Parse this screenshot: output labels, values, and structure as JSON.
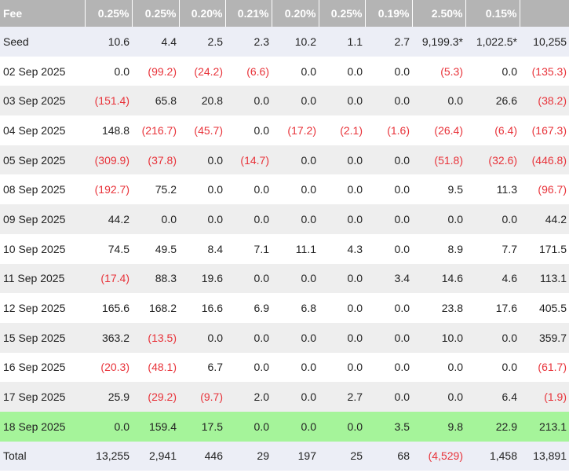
{
  "table": {
    "headers": [
      "Fee",
      "0.25%",
      "0.25%",
      "0.20%",
      "0.21%",
      "0.20%",
      "0.25%",
      "0.19%",
      "2.50%",
      "0.15%",
      ""
    ],
    "rows": [
      {
        "label": "Seed",
        "style": "seed",
        "cells": [
          "10.6",
          "4.4",
          "2.5",
          "2.3",
          "10.2",
          "1.1",
          "2.7",
          "9,199.3*",
          "1,022.5*",
          "10,255"
        ]
      },
      {
        "label": "02 Sep 2025",
        "style": "",
        "cells": [
          "0.0",
          "(99.2)",
          "(24.2)",
          "(6.6)",
          "0.0",
          "0.0",
          "0.0",
          "(5.3)",
          "0.0",
          "(135.3)"
        ]
      },
      {
        "label": "03 Sep 2025",
        "style": "",
        "cells": [
          "(151.4)",
          "65.8",
          "20.8",
          "0.0",
          "0.0",
          "0.0",
          "0.0",
          "0.0",
          "26.6",
          "(38.2)"
        ]
      },
      {
        "label": "04 Sep 2025",
        "style": "",
        "cells": [
          "148.8",
          "(216.7)",
          "(45.7)",
          "0.0",
          "(17.2)",
          "(2.1)",
          "(1.6)",
          "(26.4)",
          "(6.4)",
          "(167.3)"
        ]
      },
      {
        "label": "05 Sep 2025",
        "style": "",
        "cells": [
          "(309.9)",
          "(37.8)",
          "0.0",
          "(14.7)",
          "0.0",
          "0.0",
          "0.0",
          "(51.8)",
          "(32.6)",
          "(446.8)"
        ]
      },
      {
        "label": "08 Sep 2025",
        "style": "",
        "cells": [
          "(192.7)",
          "75.2",
          "0.0",
          "0.0",
          "0.0",
          "0.0",
          "0.0",
          "9.5",
          "11.3",
          "(96.7)"
        ]
      },
      {
        "label": "09 Sep 2025",
        "style": "",
        "cells": [
          "44.2",
          "0.0",
          "0.0",
          "0.0",
          "0.0",
          "0.0",
          "0.0",
          "0.0",
          "0.0",
          "44.2"
        ]
      },
      {
        "label": "10 Sep 2025",
        "style": "",
        "cells": [
          "74.5",
          "49.5",
          "8.4",
          "7.1",
          "11.1",
          "4.3",
          "0.0",
          "8.9",
          "7.7",
          "171.5"
        ]
      },
      {
        "label": "11 Sep 2025",
        "style": "",
        "cells": [
          "(17.4)",
          "88.3",
          "19.6",
          "0.0",
          "0.0",
          "0.0",
          "3.4",
          "14.6",
          "4.6",
          "113.1"
        ]
      },
      {
        "label": "12 Sep 2025",
        "style": "",
        "cells": [
          "165.6",
          "168.2",
          "16.6",
          "6.9",
          "6.8",
          "0.0",
          "0.0",
          "23.8",
          "17.6",
          "405.5"
        ]
      },
      {
        "label": "15 Sep 2025",
        "style": "",
        "cells": [
          "363.2",
          "(13.5)",
          "0.0",
          "0.0",
          "0.0",
          "0.0",
          "0.0",
          "10.0",
          "0.0",
          "359.7"
        ]
      },
      {
        "label": "16 Sep 2025",
        "style": "",
        "cells": [
          "(20.3)",
          "(48.1)",
          "6.7",
          "0.0",
          "0.0",
          "0.0",
          "0.0",
          "0.0",
          "0.0",
          "(61.7)"
        ]
      },
      {
        "label": "17 Sep 2025",
        "style": "",
        "cells": [
          "25.9",
          "(29.2)",
          "(9.7)",
          "2.0",
          "0.0",
          "2.7",
          "0.0",
          "0.0",
          "6.4",
          "(1.9)"
        ]
      },
      {
        "label": "18 Sep 2025",
        "style": "highlight",
        "cells": [
          "0.0",
          "159.4",
          "17.5",
          "0.0",
          "0.0",
          "0.0",
          "3.5",
          "9.8",
          "22.9",
          "213.1"
        ]
      },
      {
        "label": "Total",
        "style": "total",
        "cells": [
          "13,255",
          "2,941",
          "446",
          "29",
          "197",
          "25",
          "68",
          "(4,529)",
          "1,458",
          "13,891"
        ]
      }
    ]
  },
  "colors": {
    "header_bg": "#b4b4b4",
    "negative_text": "#e8333a",
    "highlight_row": "#a5f49a"
  }
}
